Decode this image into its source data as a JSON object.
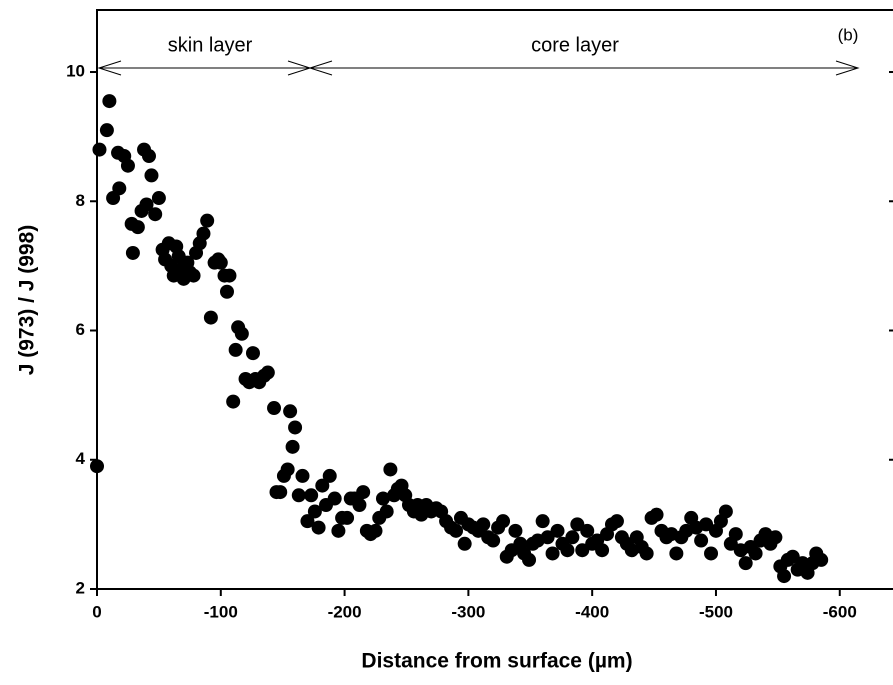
{
  "chart_data": {
    "type": "scatter",
    "xlabel": "Distance from surface (µm)",
    "ylabel": "J (973) / J (998)",
    "annotations": [
      "skin layer",
      "core layer",
      "(b)"
    ],
    "color": "#000000",
    "xlim": [
      0,
      -643
    ],
    "xticks": [
      0,
      -100,
      -200,
      -300,
      -400,
      -500,
      -600
    ],
    "ylim": [
      2,
      11
    ],
    "yticks": [
      2,
      4,
      6,
      8,
      10
    ],
    "x": [
      0,
      -2,
      -8,
      -10,
      -13,
      -17,
      -18,
      -22,
      -25,
      -28,
      -29,
      -33,
      -36,
      -38,
      -40,
      -42,
      -44,
      -47,
      -50,
      -53,
      -55,
      -58,
      -60,
      -62,
      -64,
      -66,
      -68,
      -70,
      -73,
      -75,
      -78,
      -80,
      -83,
      -86,
      -89,
      -92,
      -95,
      -98,
      -100,
      -103,
      -105,
      -107,
      -110,
      -112,
      -114,
      -117,
      -120,
      -123,
      -126,
      -128,
      -131,
      -135,
      -138,
      -143,
      -145,
      -148,
      -151,
      -154,
      -156,
      -158,
      -160,
      -163,
      -166,
      -170,
      -173,
      -176,
      -179,
      -182,
      -185,
      -188,
      -192,
      -195,
      -198,
      -202,
      -205,
      -208,
      -212,
      -215,
      -218,
      -221,
      -225,
      -228,
      -231,
      -234,
      -237,
      -240,
      -243,
      -246,
      -249,
      -252,
      -256,
      -259,
      -262,
      -266,
      -270,
      -274,
      -278,
      -282,
      -286,
      -290,
      -294,
      -297,
      -300,
      -304,
      -308,
      -312,
      -316,
      -320,
      -324,
      -328,
      -331,
      -335,
      -338,
      -342,
      -345,
      -349,
      -352,
      -356,
      -360,
      -364,
      -368,
      -372,
      -376,
      -380,
      -384,
      -388,
      -392,
      -396,
      -400,
      -404,
      -408,
      -412,
      -416,
      -420,
      -424,
      -428,
      -432,
      -436,
      -440,
      -444,
      -448,
      -452,
      -456,
      -460,
      -464,
      -468,
      -472,
      -476,
      -480,
      -484,
      -488,
      -492,
      -496,
      -500,
      -504,
      -508,
      -512,
      -516,
      -520,
      -524,
      -528,
      -532,
      -536,
      -540,
      -544,
      -548,
      -552,
      -555,
      -558,
      -562,
      -566,
      -570,
      -574,
      -578,
      -581,
      -585
    ],
    "values": [
      3.9,
      8.8,
      9.1,
      9.55,
      8.05,
      8.75,
      8.2,
      8.7,
      8.55,
      7.65,
      7.2,
      7.6,
      7.85,
      8.8,
      7.95,
      8.7,
      8.4,
      7.8,
      8.05,
      7.25,
      7.1,
      7.35,
      7.0,
      6.85,
      7.3,
      7.15,
      6.95,
      6.8,
      7.05,
      6.9,
      6.85,
      7.2,
      7.35,
      7.5,
      7.7,
      6.2,
      7.05,
      7.1,
      7.05,
      6.85,
      6.6,
      6.85,
      4.9,
      5.7,
      6.05,
      5.95,
      5.25,
      5.2,
      5.65,
      5.25,
      5.2,
      5.3,
      5.35,
      4.8,
      3.5,
      3.5,
      3.75,
      3.85,
      4.75,
      4.2,
      4.5,
      3.45,
      3.75,
      3.05,
      3.45,
      3.2,
      2.95,
      3.6,
      3.3,
      3.75,
      3.4,
      2.9,
      3.1,
      3.1,
      3.4,
      3.4,
      3.3,
      3.5,
      2.9,
      2.85,
      2.9,
      3.1,
      3.4,
      3.2,
      3.85,
      3.45,
      3.55,
      3.6,
      3.45,
      3.3,
      3.2,
      3.3,
      3.15,
      3.3,
      3.2,
      3.25,
      3.2,
      3.05,
      2.95,
      2.9,
      3.1,
      2.7,
      3.0,
      2.95,
      2.9,
      3.0,
      2.8,
      2.75,
      2.95,
      3.05,
      2.5,
      2.6,
      2.9,
      2.7,
      2.55,
      2.45,
      2.7,
      2.75,
      3.05,
      2.8,
      2.55,
      2.9,
      2.7,
      2.6,
      2.8,
      3.0,
      2.6,
      2.9,
      2.7,
      2.75,
      2.6,
      2.85,
      3.0,
      3.05,
      2.8,
      2.7,
      2.6,
      2.8,
      2.65,
      2.55,
      3.1,
      3.15,
      2.9,
      2.8,
      2.85,
      2.55,
      2.8,
      2.9,
      3.1,
      2.95,
      2.75,
      3.0,
      2.55,
      2.9,
      3.05,
      3.2,
      2.7,
      2.85,
      2.6,
      2.4,
      2.65,
      2.55,
      2.75,
      2.85,
      2.7,
      2.8,
      2.35,
      2.2,
      2.45,
      2.5,
      2.3,
      2.4,
      2.25,
      2.4,
      2.55,
      2.45
    ]
  }
}
